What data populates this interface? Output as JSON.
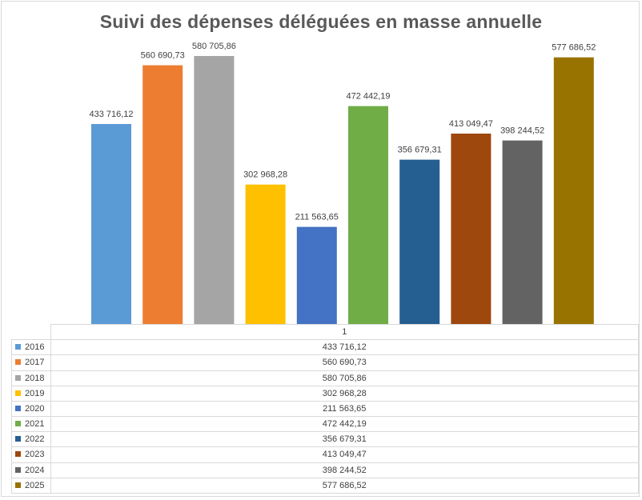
{
  "chart_data": {
    "type": "bar",
    "title": "Suivi des dépenses déléguées en masse annuelle",
    "categories": [
      "1"
    ],
    "ylim": [
      0,
      600000
    ],
    "grid": false,
    "legend": "data-table",
    "series": [
      {
        "name": "2016",
        "values": [
          433716.12
        ],
        "label": "433 716,12",
        "color": "#5B9BD5"
      },
      {
        "name": "2017",
        "values": [
          560690.73
        ],
        "label": "560 690,73",
        "color": "#ED7D31"
      },
      {
        "name": "2018",
        "values": [
          580705.86
        ],
        "label": "580 705,86",
        "color": "#A5A5A5"
      },
      {
        "name": "2019",
        "values": [
          302968.28
        ],
        "label": "302 968,28",
        "color": "#FFC000"
      },
      {
        "name": "2020",
        "values": [
          211563.65
        ],
        "label": "211 563,65",
        "color": "#4472C4"
      },
      {
        "name": "2021",
        "values": [
          472442.19
        ],
        "label": "472 442,19",
        "color": "#70AD47"
      },
      {
        "name": "2022",
        "values": [
          356679.31
        ],
        "label": "356 679,31",
        "color": "#255E91"
      },
      {
        "name": "2023",
        "values": [
          413049.47
        ],
        "label": "413 049,47",
        "color": "#9E480E"
      },
      {
        "name": "2024",
        "values": [
          398244.52
        ],
        "label": "398 244,52",
        "color": "#636363"
      },
      {
        "name": "2025",
        "values": [
          577686.52
        ],
        "label": "577 686,52",
        "color": "#997300"
      }
    ]
  }
}
